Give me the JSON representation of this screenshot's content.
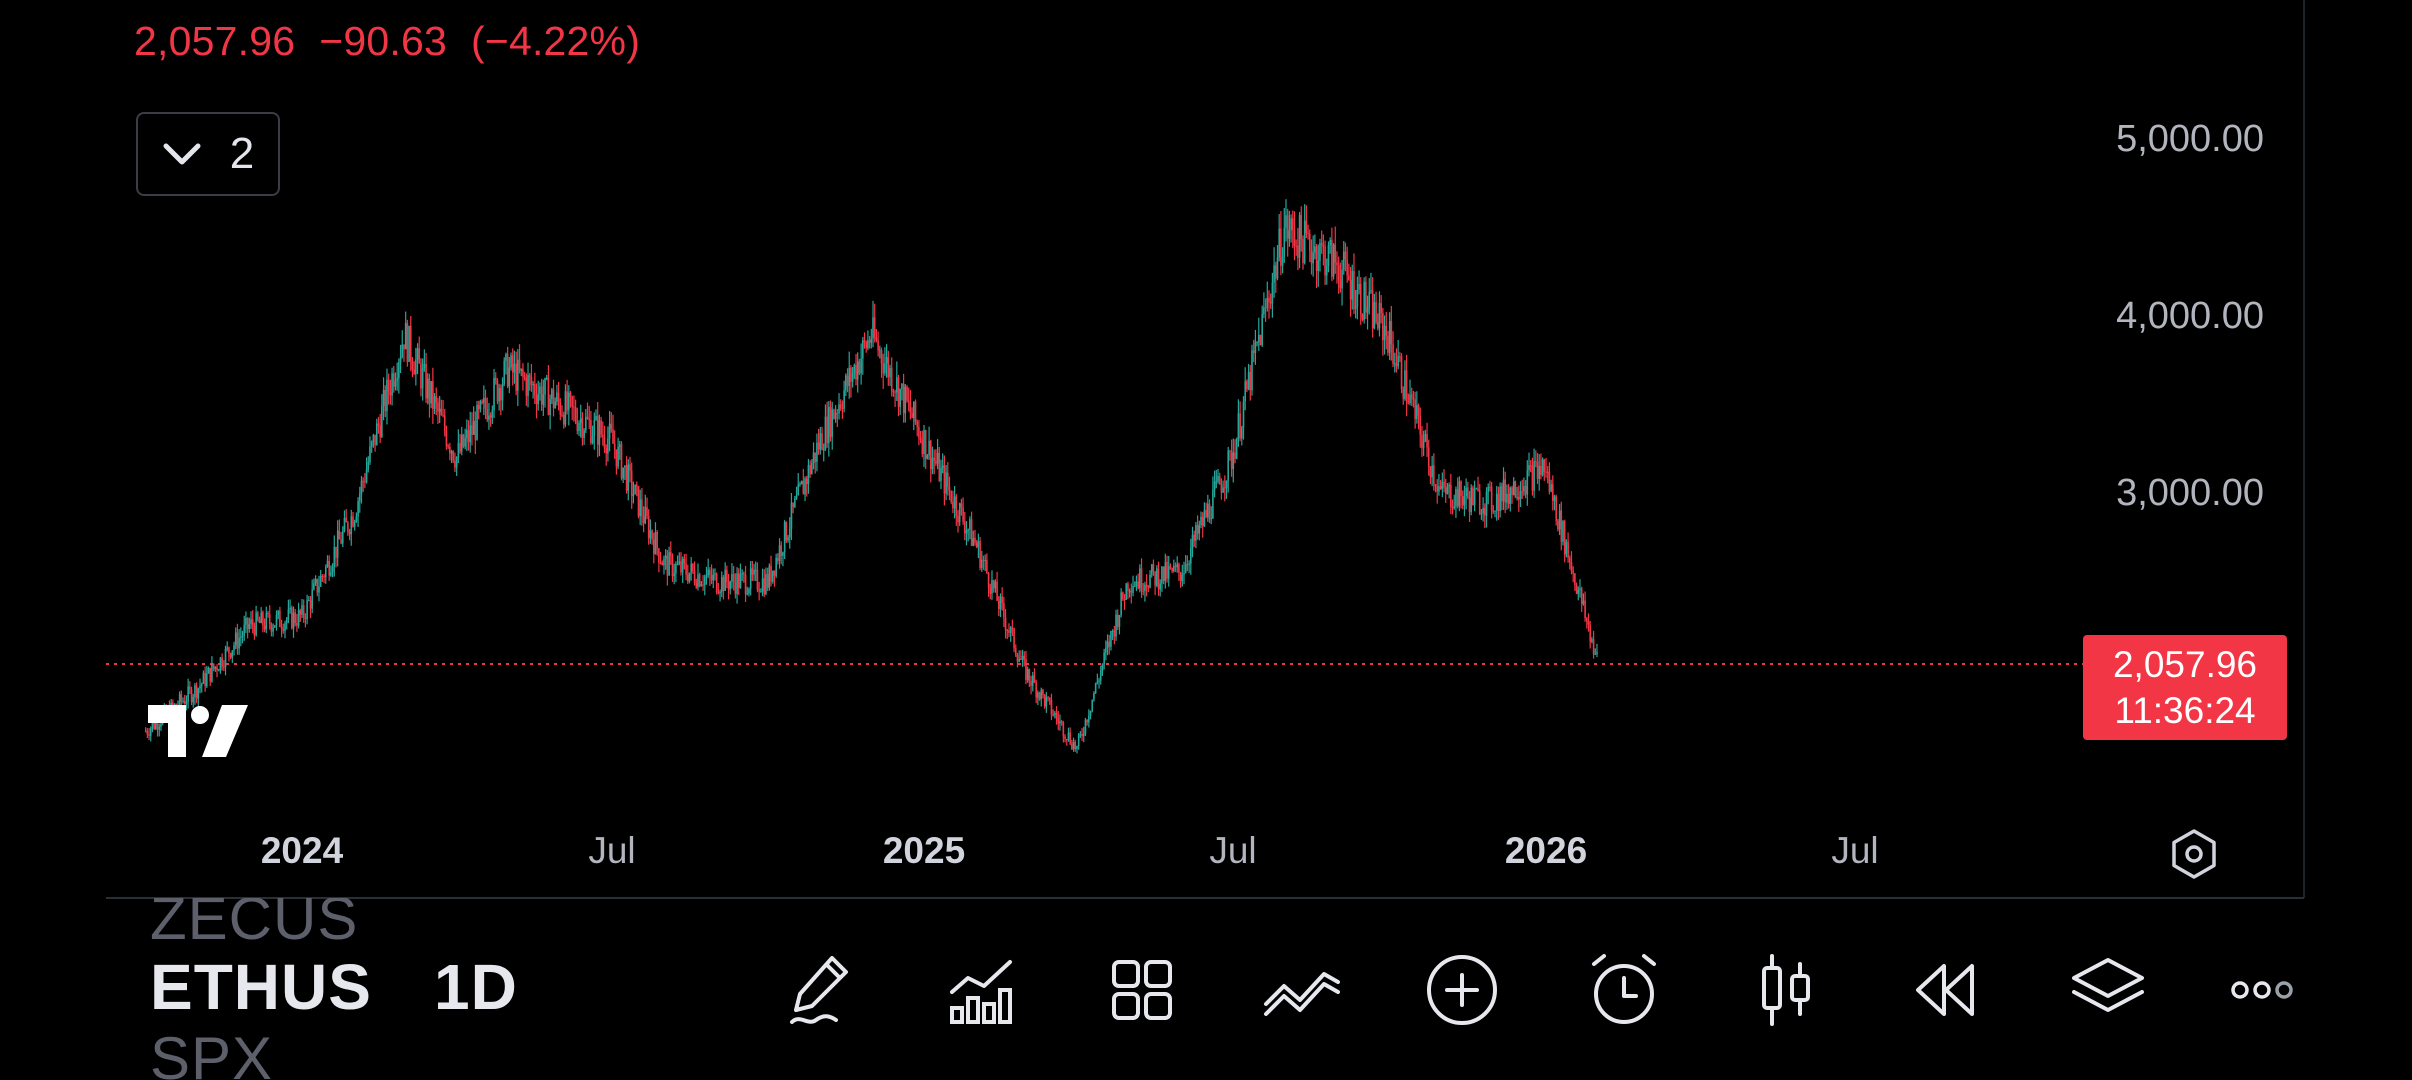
{
  "quote": {
    "last_price": "2,057.96",
    "change": "−90.63",
    "change_percent": "(−4.22%)"
  },
  "colors": {
    "up": "#26a69a",
    "down": "#f23645",
    "background": "#000000",
    "axis_text": "#b2b5be"
  },
  "indicators_toggle": {
    "icon": "chevron-down-icon",
    "count": "2"
  },
  "price_axis": {
    "labels": [
      "5,000.00",
      "4,000.00",
      "3,000.00"
    ]
  },
  "last_price_badge": {
    "price": "2,057.96",
    "countdown": "11:36:24"
  },
  "time_axis": {
    "labels": [
      {
        "text": "2024",
        "bold": true
      },
      {
        "text": "Jul",
        "bold": false
      },
      {
        "text": "2025",
        "bold": true
      },
      {
        "text": "Jul",
        "bold": false
      },
      {
        "text": "2026",
        "bold": true
      },
      {
        "text": "Jul",
        "bold": false
      }
    ]
  },
  "symbol_picker": {
    "previous": "ZECUS",
    "current": "ETHUS",
    "next": "SPX"
  },
  "interval": "1D",
  "toolbar": [
    {
      "icon": "drawing-pen-icon"
    },
    {
      "icon": "indicators-icon"
    },
    {
      "icon": "layout-grid-icon"
    },
    {
      "icon": "compare-symbols-icon"
    },
    {
      "icon": "add-circle-icon"
    },
    {
      "icon": "alarm-clock-icon"
    },
    {
      "icon": "candlestick-chart-type-icon"
    },
    {
      "icon": "replay-rewind-icon"
    },
    {
      "icon": "layers-icon"
    },
    {
      "icon": "more-dots-icon"
    }
  ],
  "chart_data": {
    "type": "candlestick",
    "symbol": "ETHUS",
    "interval": "1D",
    "x_axis": {
      "ticks": [
        "2024",
        "Jul",
        "2025",
        "Jul",
        "2026",
        "Jul"
      ]
    },
    "y_axis": {
      "ticks": [
        3000,
        4000,
        5000
      ],
      "range": [
        1300,
        5800
      ]
    },
    "last_price_line": 2057.96,
    "series": [
      {
        "name": "ETHUS",
        "x": [
          "2023-10-01",
          "2023-11-01",
          "2023-12-01",
          "2024-01-01",
          "2024-02-01",
          "2024-03-01",
          "2024-04-01",
          "2024-05-01",
          "2024-06-01",
          "2024-07-01",
          "2024-08-01",
          "2024-09-01",
          "2024-10-01",
          "2024-11-01",
          "2024-12-01",
          "2025-01-01",
          "2025-02-01",
          "2025-03-01",
          "2025-04-01",
          "2025-05-01",
          "2025-06-01",
          "2025-07-01",
          "2025-08-01",
          "2025-09-01",
          "2025-10-01",
          "2025-11-01",
          "2025-12-01",
          "2026-01-01",
          "2026-02-01"
        ],
        "y": [
          1650,
          1900,
          2250,
          2300,
          2900,
          3900,
          3200,
          3700,
          3500,
          3300,
          2600,
          2500,
          2500,
          3300,
          3900,
          3300,
          2700,
          2000,
          1550,
          2500,
          2550,
          3200,
          4500,
          4300,
          3900,
          3000,
          2950,
          3150,
          2058
        ]
      }
    ]
  }
}
